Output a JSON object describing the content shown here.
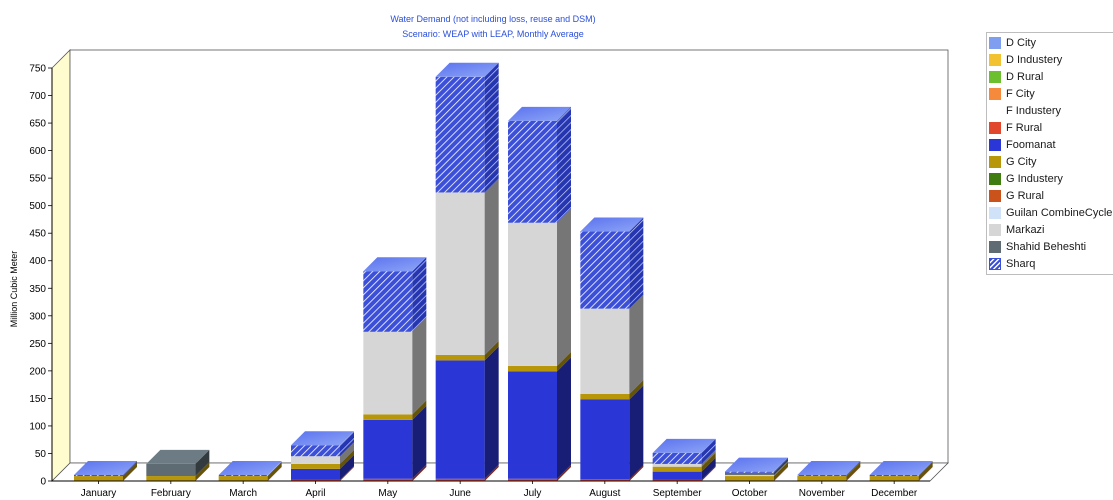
{
  "chart_data": {
    "type": "bar",
    "stacked": true,
    "three_d": true,
    "title": "Water Demand (not including loss, reuse and DSM)",
    "subtitle": "Scenario: WEAP with LEAP,  Monthly Average",
    "xlabel": "",
    "ylabel": "Million Cubic Meter",
    "ylim": [
      0,
      750
    ],
    "yticks": [
      0,
      50,
      100,
      150,
      200,
      250,
      300,
      350,
      400,
      450,
      500,
      550,
      600,
      650,
      700,
      750
    ],
    "grid": false,
    "legend_position": "right",
    "categories": [
      "January",
      "February",
      "March",
      "April",
      "May",
      "June",
      "July",
      "August",
      "September",
      "October",
      "November",
      "December"
    ],
    "series": [
      {
        "name": "D City",
        "color": "#7f9ef0",
        "pattern": "solid",
        "values": [
          0,
          0,
          0,
          0,
          0,
          0,
          0,
          0,
          0,
          0,
          0,
          0
        ]
      },
      {
        "name": "D Industery",
        "color": "#f2c230",
        "pattern": "solid",
        "values": [
          0,
          0,
          0,
          0,
          0,
          0,
          0,
          0,
          0,
          0,
          0,
          0
        ]
      },
      {
        "name": "D Rural",
        "color": "#6cbf2e",
        "pattern": "solid",
        "values": [
          0,
          0,
          0,
          0,
          0,
          0,
          0,
          0,
          0,
          0,
          0,
          0
        ]
      },
      {
        "name": "F City",
        "color": "#f58a3c",
        "pattern": "solid",
        "values": [
          0,
          0,
          0,
          0,
          0,
          0,
          0,
          0,
          0,
          0,
          0,
          0
        ]
      },
      {
        "name": "F Industery",
        "color": "#ffffff",
        "pattern": "solid",
        "values": [
          0,
          0,
          0,
          0,
          0,
          0,
          0,
          0,
          0,
          0,
          0,
          0
        ]
      },
      {
        "name": "F Rural",
        "color": "#e0472c",
        "pattern": "solid",
        "values": [
          1,
          1,
          1,
          2,
          4,
          4,
          4,
          3,
          2,
          1,
          1,
          1
        ]
      },
      {
        "name": "Foomanat",
        "color": "#2b36d6",
        "pattern": "solid",
        "values": [
          0,
          0,
          0,
          20,
          107,
          215,
          195,
          145,
          15,
          0,
          0,
          0
        ]
      },
      {
        "name": "G City",
        "color": "#b8960a",
        "pattern": "solid",
        "values": [
          8,
          8,
          8,
          9,
          10,
          10,
          10,
          10,
          9,
          8,
          8,
          8
        ]
      },
      {
        "name": "G Industery",
        "color": "#3f7d10",
        "pattern": "solid",
        "values": [
          0,
          0,
          0,
          0,
          0,
          0,
          0,
          0,
          0,
          0,
          0,
          0
        ]
      },
      {
        "name": "G Rural",
        "color": "#c9531b",
        "pattern": "solid",
        "values": [
          0,
          0,
          0,
          0,
          0,
          0,
          0,
          0,
          0,
          0,
          0,
          0
        ]
      },
      {
        "name": "Guilan CombineCycle",
        "color": "#cfe2f7",
        "pattern": "solid",
        "values": [
          0,
          0,
          0,
          0,
          0,
          0,
          0,
          0,
          0,
          0,
          0,
          0
        ]
      },
      {
        "name": "Markazi",
        "color": "#d6d6d6",
        "pattern": "solid",
        "values": [
          0,
          0,
          0,
          14,
          150,
          295,
          260,
          155,
          5,
          2,
          0,
          0
        ]
      },
      {
        "name": "Shahid Beheshti",
        "color": "#5f6b73",
        "pattern": "solid",
        "values": [
          0,
          22,
          0,
          0,
          0,
          0,
          0,
          0,
          0,
          4,
          0,
          0
        ]
      },
      {
        "name": "Sharq",
        "color": "#3b4fd8",
        "pattern": "hatch",
        "values": [
          2,
          0,
          2,
          20,
          110,
          210,
          185,
          140,
          20,
          2,
          2,
          2
        ]
      }
    ]
  }
}
